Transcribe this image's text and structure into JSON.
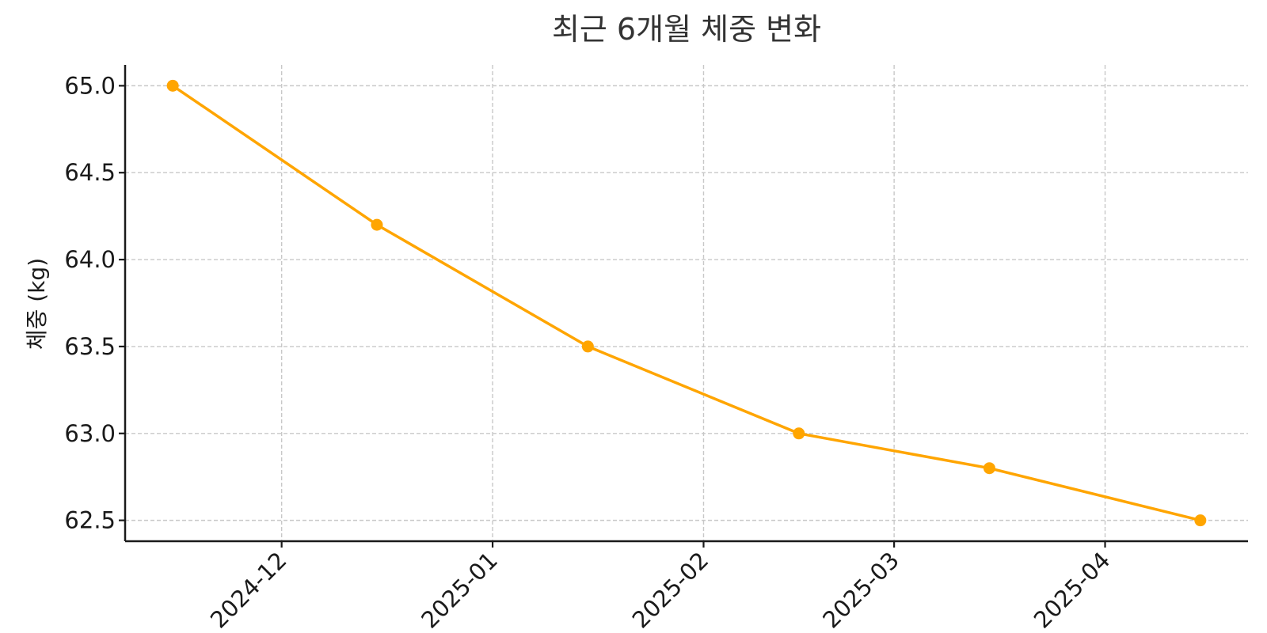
{
  "chart_data": {
    "type": "line",
    "title": "최근 6개월 체중 변화",
    "xlabel": "",
    "ylabel": "체중 (kg)",
    "x": [
      "2024-11-15",
      "2024-12-15",
      "2025-01-15",
      "2025-02-15",
      "2025-03-15",
      "2025-04-15"
    ],
    "series": [
      {
        "values": [
          65.0,
          64.2,
          63.5,
          63.0,
          62.8,
          62.5
        ],
        "color": "#FFA500"
      }
    ],
    "x_ticks": [
      "2024-12",
      "2025-01",
      "2025-02",
      "2025-03",
      "2025-04"
    ],
    "y_ticks": [
      "62.5",
      "63.0",
      "63.5",
      "64.0",
      "64.5",
      "65.0"
    ],
    "ylim": [
      62.38,
      65.12
    ],
    "xlim": [
      "2024-11-08",
      "2025-04-22"
    ],
    "grid": true,
    "legend": "none"
  }
}
